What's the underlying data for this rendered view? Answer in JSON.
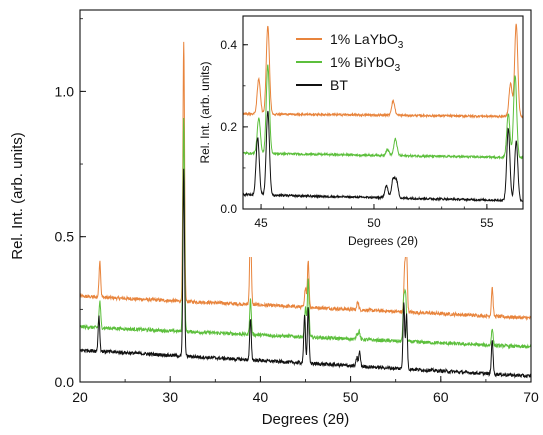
{
  "chart_data": [
    {
      "type": "line",
      "xlabel": "Degrees (2θ)",
      "ylabel": "Rel. Int. (arb. units)",
      "xlim": [
        20,
        70
      ],
      "ylim": [
        0,
        1.28
      ],
      "xticks": [
        20,
        30,
        40,
        50,
        60,
        70
      ],
      "yticks": [
        0.0,
        0.5,
        1.0
      ],
      "ytick_labels": [
        "0.0",
        "0.5",
        "1.0"
      ],
      "grid": false,
      "series": [
        {
          "name": "1% LaYbO3",
          "color": "#e8843c",
          "baseline": 0.295,
          "end": 0.22,
          "peaks": [
            [
              22.2,
              0.125
            ],
            [
              31.5,
              0.89
            ],
            [
              38.9,
              0.28
            ],
            [
              45.0,
              0.07
            ],
            [
              45.3,
              0.16
            ],
            [
              50.8,
              0.03
            ],
            [
              56.0,
              0.15
            ],
            [
              56.2,
              0.21
            ],
            [
              65.7,
              0.1
            ]
          ]
        },
        {
          "name": "1% BiYbO3",
          "color": "#5cbf3c",
          "baseline": 0.19,
          "end": 0.12,
          "peaks": [
            [
              22.2,
              0.09
            ],
            [
              31.5,
              0.74
            ],
            [
              38.9,
              0.12
            ],
            [
              45.0,
              0.1
            ],
            [
              45.3,
              0.2
            ],
            [
              50.7,
              0.02
            ],
            [
              50.95,
              0.03
            ],
            [
              55.9,
              0.15
            ],
            [
              56.1,
              0.16
            ],
            [
              65.7,
              0.06
            ]
          ]
        },
        {
          "name": "BT",
          "color": "#111111",
          "baseline": 0.11,
          "end": 0.02,
          "peaks": [
            [
              22.1,
              0.12
            ],
            [
              31.5,
              0.64
            ],
            [
              38.9,
              0.14
            ],
            [
              44.9,
              0.17
            ],
            [
              45.3,
              0.19
            ],
            [
              50.7,
              0.03
            ],
            [
              51.0,
              0.05
            ],
            [
              55.9,
              0.23
            ],
            [
              56.2,
              0.19
            ],
            [
              65.7,
              0.12
            ]
          ]
        }
      ]
    },
    {
      "type": "line",
      "xlabel": "Degrees (2θ)",
      "ylabel": "Rel. Int. (arb. units)",
      "xlim": [
        44.2,
        56.6
      ],
      "ylim": [
        0,
        0.47
      ],
      "xticks": [
        45,
        50,
        55
      ],
      "yticks": [
        0.0,
        0.2,
        0.4
      ],
      "ytick_labels": [
        "0.0",
        "0.2",
        "0.4"
      ],
      "grid": false,
      "legend": "top-left",
      "legend_labels": [
        {
          "base": "1% LaYbO",
          "sub": "3"
        },
        {
          "base": "1% BiYbO",
          "sub": "3"
        },
        {
          "base": "BT",
          "sub": ""
        }
      ],
      "series": [
        {
          "name": "1% LaYbO3",
          "color": "#e8843c",
          "baseline": 0.232,
          "end": 0.225,
          "peaks": [
            [
              44.9,
              0.085
            ],
            [
              45.3,
              0.215
            ],
            [
              50.85,
              0.035
            ],
            [
              56.05,
              0.08
            ],
            [
              56.3,
              0.225
            ]
          ]
        },
        {
          "name": "1% BiYbO3",
          "color": "#5cbf3c",
          "baseline": 0.136,
          "end": 0.125,
          "peaks": [
            [
              44.9,
              0.085
            ],
            [
              45.3,
              0.215
            ],
            [
              50.6,
              0.015
            ],
            [
              50.95,
              0.04
            ],
            [
              55.95,
              0.105
            ],
            [
              56.25,
              0.2
            ]
          ]
        },
        {
          "name": "BT",
          "color": "#111111",
          "baseline": 0.035,
          "end": 0.02,
          "peaks": [
            [
              44.85,
              0.14
            ],
            [
              45.3,
              0.205
            ],
            [
              50.55,
              0.03
            ],
            [
              50.85,
              0.045
            ],
            [
              51.0,
              0.04
            ],
            [
              55.95,
              0.175
            ],
            [
              56.3,
              0.145
            ]
          ]
        }
      ]
    }
  ]
}
